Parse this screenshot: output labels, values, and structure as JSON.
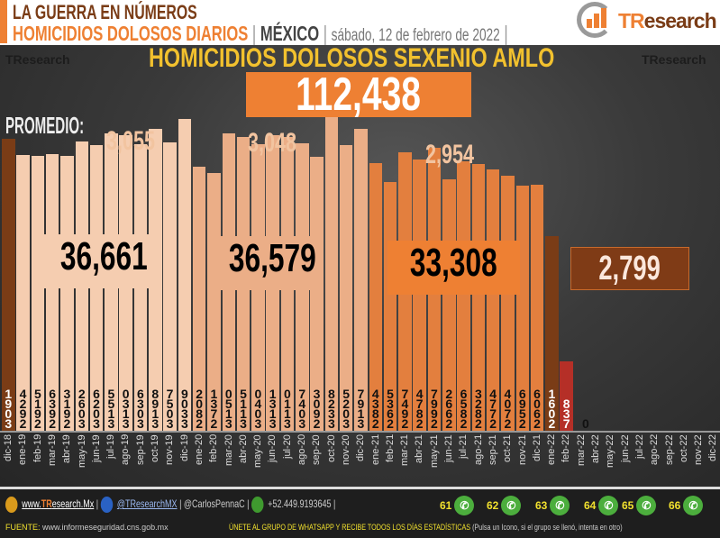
{
  "header": {
    "line1": "LA GUERRA EN NÚMEROS",
    "line2": "HOMICIDIOS DOLOSOS DIARIOS",
    "separator": "|",
    "region": "MÉXICO",
    "date": "sábado, 12 de febrero de 2022",
    "logo_text_a": "TR",
    "logo_text_b": "esearch"
  },
  "chart_data": {
    "type": "bar",
    "title": "HOMICIDIOS DOLOSOS SEXENIO AMLO",
    "total": "112,438",
    "promedio_label": "PROMEDIO:",
    "averages": [
      {
        "year": "2019",
        "value": "3,055"
      },
      {
        "year": "2020",
        "value": "3,048"
      },
      {
        "year": "2021",
        "value": "2,954"
      }
    ],
    "year_totals": [
      {
        "year": "2019",
        "value": "36,661"
      },
      {
        "year": "2020",
        "value": "36,579"
      },
      {
        "year": "2021",
        "value": "33,308"
      },
      {
        "year": "2022",
        "value": "2,799"
      }
    ],
    "categories": [
      "dic-18",
      "ene-19",
      "feb-19",
      "mar-19",
      "abr-19",
      "may-19",
      "jun-19",
      "jul-19",
      "ago-19",
      "sep-19",
      "oct-19",
      "nov-19",
      "dic-19",
      "ene-20",
      "feb-20",
      "mar-20",
      "abr-20",
      "may-20",
      "jun-20",
      "jul-20",
      "ago-20",
      "sep-20",
      "oct-20",
      "nov-20",
      "dic-20",
      "ene-21",
      "feb-21",
      "mar-21",
      "abr-21",
      "may-21",
      "jun-21",
      "jul-21",
      "ago-21",
      "sep-21",
      "oct-21",
      "nov-21",
      "dic-21",
      "ene-22",
      "feb-22",
      "mar-22",
      "abr-22",
      "may-22",
      "jun-22",
      "jul-22",
      "ago-22",
      "sep-22",
      "oct-22",
      "nov-22",
      "dic-22"
    ],
    "values": [
      3091,
      2924,
      2915,
      2936,
      2913,
      3062,
      3026,
      3155,
      3130,
      3036,
      3198,
      3057,
      3309,
      2802,
      2731,
      3150,
      3115,
      3040,
      3131,
      3110,
      3047,
      2903,
      3328,
      3025,
      3197,
      2834,
      2635,
      2947,
      2874,
      2997,
      2662,
      2856,
      2823,
      2774,
      2704,
      2596,
      2606,
      2061,
      738,
      0,
      null,
      null,
      null,
      null,
      null,
      null,
      null,
      null,
      null
    ],
    "ylim": [
      0,
      3400
    ],
    "colors": {
      "dic-18": "#7a3c16",
      "2019": "#f5cdb0",
      "2020": "#ebae87",
      "2021": "#e37f3e",
      "ene-22": "#7a3c16",
      "feb-22": "#b52f27"
    }
  },
  "footer": {
    "website_a": "www.",
    "website_b": "TR",
    "website_c": "esearch.Mx",
    "twitter": "@TResearchMX",
    "handle": "@CarlosPennaC",
    "phone": "+52.449.9193645",
    "sep": "|",
    "source_label": "FUENTE:",
    "source_url": "www.informeseguridad.cns.gob.mx",
    "join_text": "ÚNETE AL GRUPO DE WHATSAPP Y RECIBE TODOS LOS DÍAS ESTADÍSTICAS",
    "join_hint": "(Pulsa un Icono, si el grupo se llenó, intenta en otro)",
    "whatsapp_groups": [
      "61",
      "62",
      "63",
      "64",
      "65",
      "66"
    ]
  },
  "watermark": "TResearch"
}
